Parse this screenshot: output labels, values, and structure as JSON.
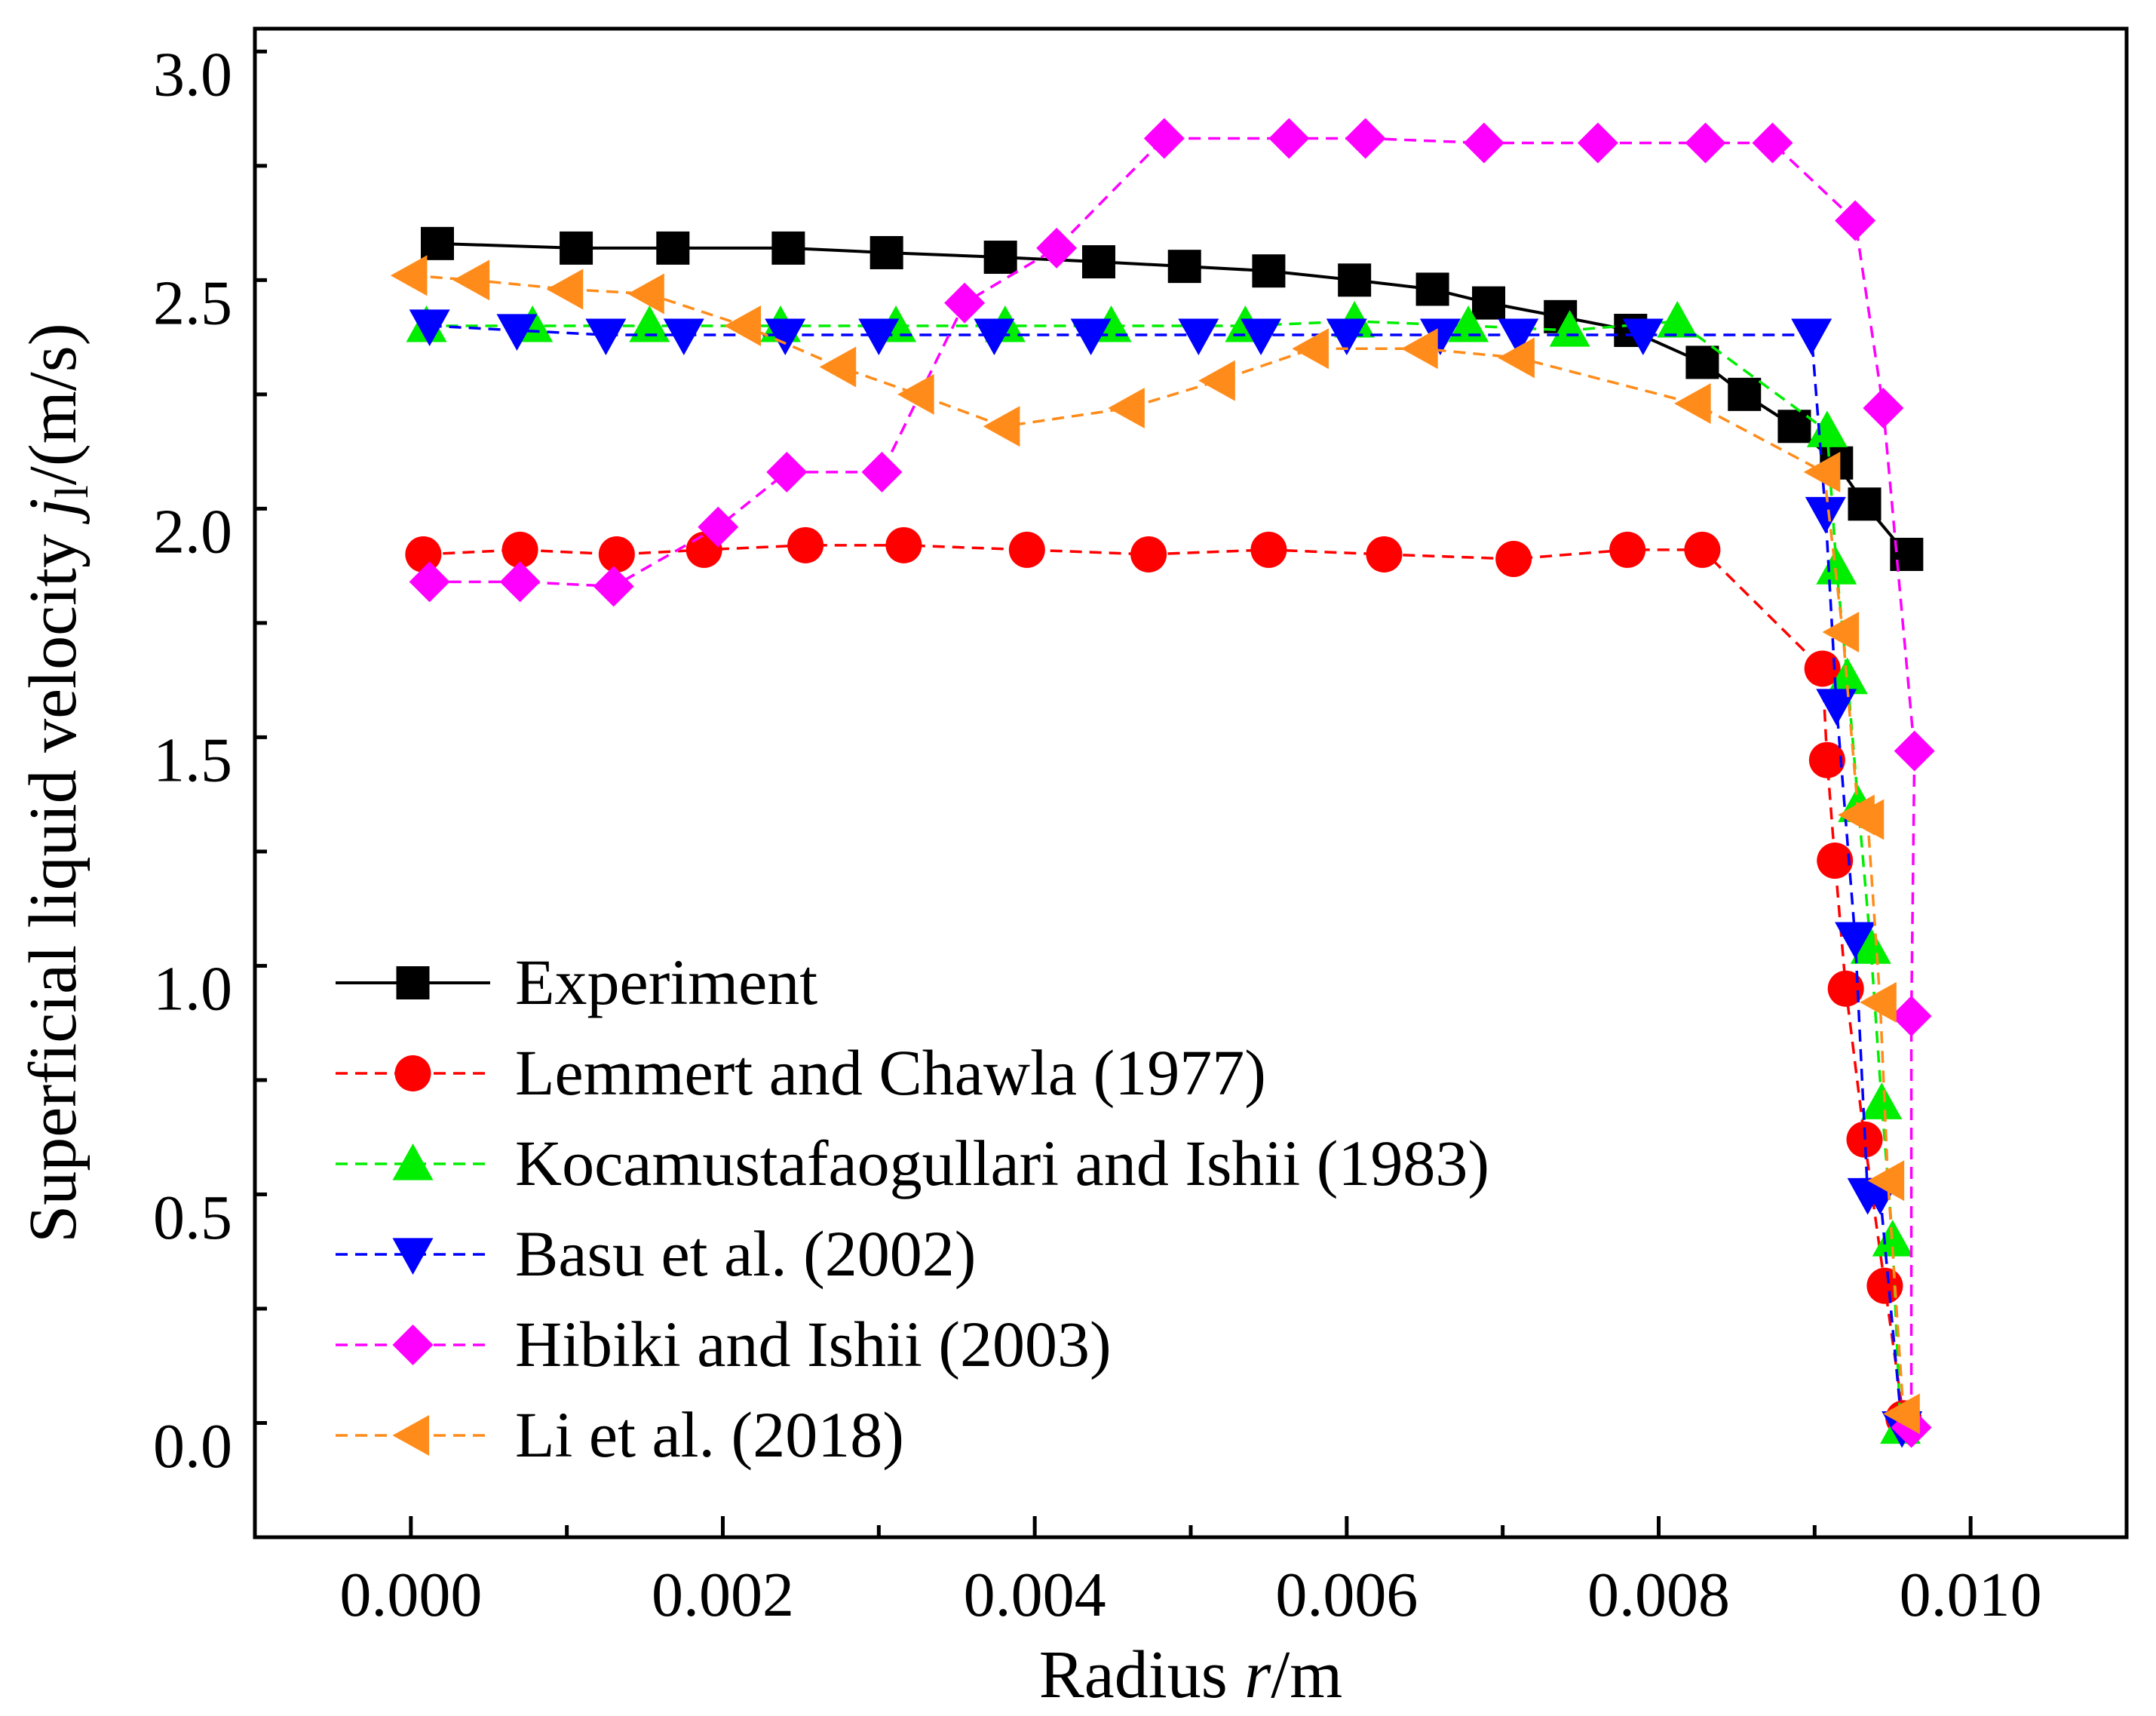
{
  "chart_data": {
    "type": "line",
    "title": "",
    "xlabel": "Radius r/m",
    "ylabel": "Superficial liquid velocity j_l/(m/s)",
    "xlabel_parts": {
      "pre": "Radius ",
      "var": "r",
      "post": "/m"
    },
    "ylabel_parts": {
      "pre": "Superficial liquid velocity ",
      "var": "j",
      "sub": "l",
      "post": "/(m/s)"
    },
    "xlim": [
      -0.001,
      0.011
    ],
    "ylim": [
      -0.2,
      3.1
    ],
    "xticks": [
      0.0,
      0.002,
      0.004,
      0.006,
      0.008,
      0.01
    ],
    "xtick_labels": [
      "0.000",
      "0.002",
      "0.004",
      "0.006",
      "0.008",
      "0.010"
    ],
    "yticks": [
      0.0,
      0.5,
      1.0,
      1.5,
      2.0,
      2.5,
      3.0
    ],
    "ytick_labels": [
      "0.0",
      "0.5",
      "1.0",
      "1.5",
      "2.0",
      "2.5",
      "3.0"
    ],
    "grid": false,
    "legend_position": "bottom-left",
    "series": [
      {
        "name": "Experiment",
        "color": "#000000",
        "marker": "square",
        "line": "solid",
        "x": [
          0.00017,
          0.00106,
          0.00168,
          0.00242,
          0.00305,
          0.00378,
          0.00441,
          0.00496,
          0.0055,
          0.00605,
          0.00655,
          0.00691,
          0.00737,
          0.00782,
          0.00828,
          0.00855,
          0.00887,
          0.00914,
          0.00932,
          0.00959
        ],
        "values": [
          2.63,
          2.62,
          2.62,
          2.62,
          2.61,
          2.6,
          2.59,
          2.58,
          2.57,
          2.55,
          2.53,
          2.5,
          2.47,
          2.44,
          2.37,
          2.3,
          2.23,
          2.15,
          2.06,
          1.95
        ]
      },
      {
        "name": "Lemmert and Chawla (1977)",
        "color": "#ff0000",
        "marker": "circle",
        "line": "dashed",
        "x": [
          8e-05,
          0.0007,
          0.00132,
          0.00188,
          0.00253,
          0.00316,
          0.00395,
          0.00473,
          0.0055,
          0.00624,
          0.00707,
          0.0078,
          0.00828,
          0.00905,
          0.00908,
          0.00913,
          0.0092,
          0.00932,
          0.00945,
          0.00957
        ],
        "values": [
          1.95,
          1.96,
          1.95,
          1.96,
          1.97,
          1.97,
          1.96,
          1.95,
          1.96,
          1.95,
          1.94,
          1.96,
          1.96,
          1.7,
          1.5,
          1.28,
          1.0,
          0.67,
          0.35,
          0.06
        ]
      },
      {
        "name": "Kocamustafaogullari and Ishii (1983)",
        "color": "#00ee00",
        "marker": "triangle-up",
        "line": "dashed",
        "x": [
          0.0001,
          0.00078,
          0.00153,
          0.00237,
          0.00311,
          0.00381,
          0.00449,
          0.00535,
          0.00605,
          0.00678,
          0.00743,
          0.00812,
          0.00908,
          0.00914,
          0.00921,
          0.00928,
          0.00936,
          0.00943,
          0.0095,
          0.00955
        ],
        "values": [
          2.45,
          2.45,
          2.45,
          2.45,
          2.45,
          2.45,
          2.45,
          2.45,
          2.46,
          2.45,
          2.44,
          2.46,
          2.22,
          1.92,
          1.68,
          1.4,
          1.09,
          0.75,
          0.45,
          0.04
        ]
      },
      {
        "name": "Basu et al. (2002)",
        "color": "#0000ff",
        "marker": "triangle-down",
        "line": "dashed",
        "x": [
          0.00012,
          0.00068,
          0.00125,
          0.00175,
          0.0024,
          0.003,
          0.00374,
          0.00436,
          0.00505,
          0.00545,
          0.006,
          0.0066,
          0.0071,
          0.0079,
          0.00898,
          0.00907,
          0.00914,
          0.00926,
          0.00934,
          0.00942,
          0.00956
        ],
        "values": [
          2.45,
          2.44,
          2.43,
          2.43,
          2.43,
          2.43,
          2.43,
          2.43,
          2.43,
          2.43,
          2.43,
          2.43,
          2.43,
          2.43,
          2.43,
          2.04,
          1.62,
          1.11,
          0.55,
          0.55,
          0.04
        ]
      },
      {
        "name": "Hibiki and Ishii (2003)",
        "color": "#ff00ff",
        "marker": "diamond",
        "line": "dashed",
        "x": [
          0.00012,
          0.0007,
          0.0013,
          0.00197,
          0.00241,
          0.00302,
          0.00355,
          0.00414,
          0.00483,
          0.00563,
          0.00612,
          0.00688,
          0.00761,
          0.0083,
          0.00873,
          0.00926,
          0.00944,
          0.00964,
          0.00962,
          0.00962
        ],
        "values": [
          1.89,
          1.89,
          1.88,
          2.01,
          2.13,
          2.13,
          2.5,
          2.62,
          2.86,
          2.86,
          2.86,
          2.85,
          2.85,
          2.85,
          2.85,
          2.68,
          2.27,
          1.52,
          0.94,
          0.04
        ]
      },
      {
        "name": "Li et al. (2018)",
        "color": "#ff8c1a",
        "marker": "triangle-left",
        "line": "dashed",
        "x": [
          0.0,
          0.0004,
          0.001,
          0.00152,
          0.00214,
          0.00275,
          0.00325,
          0.0038,
          0.0046,
          0.00518,
          0.00578,
          0.00648,
          0.0071,
          0.00823,
          0.00906,
          0.00918,
          0.00928,
          0.00934,
          0.00942,
          0.00947,
          0.00957
        ],
        "values": [
          2.56,
          2.55,
          2.53,
          2.52,
          2.45,
          2.36,
          2.3,
          2.23,
          2.27,
          2.33,
          2.4,
          2.4,
          2.38,
          2.28,
          2.13,
          1.78,
          1.38,
          1.37,
          0.97,
          0.58,
          0.07
        ]
      }
    ]
  }
}
